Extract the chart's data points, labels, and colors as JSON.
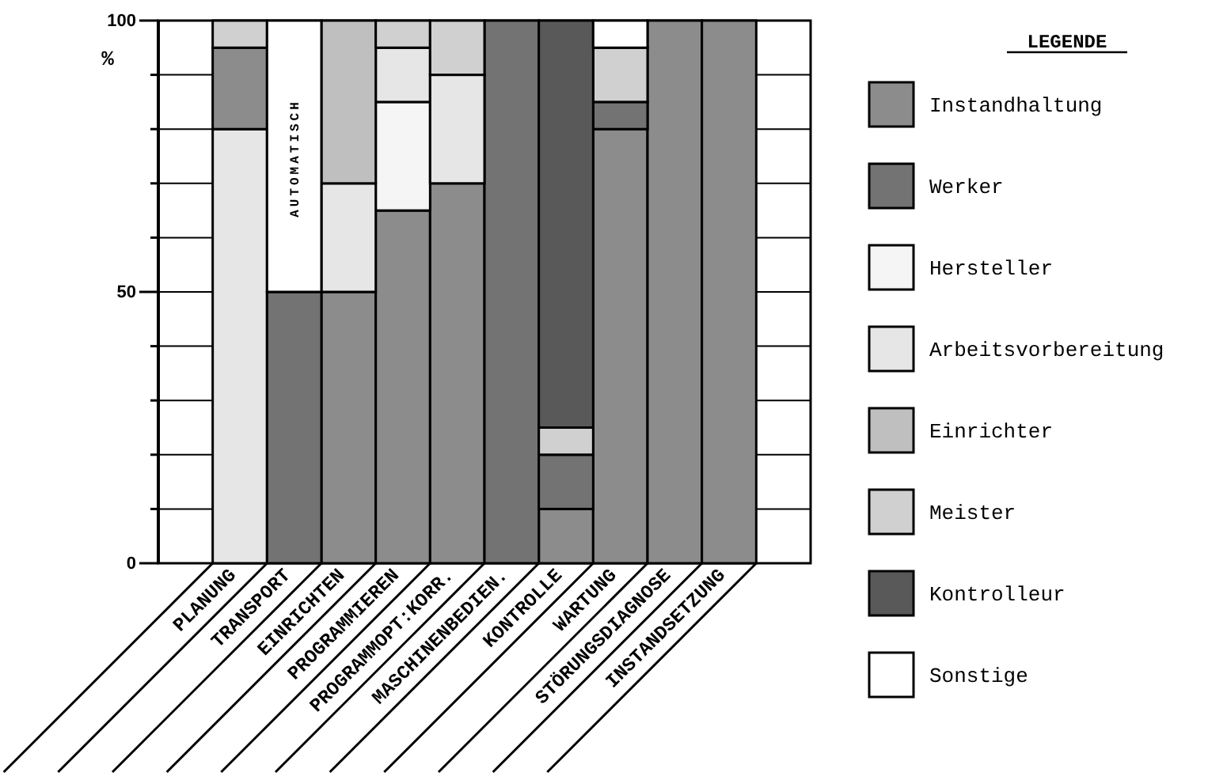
{
  "chart_data": {
    "type": "bar",
    "stacked": true,
    "categories": [
      "PLANUNG",
      "TRANSPORT",
      "EINRICHTEN",
      "PROGRAMMIEREN",
      "PROGRAMMOPT:KORR.",
      "MASCHINENBEDIEN.",
      "KONTROLLE",
      "WARTUNG",
      "STÖRUNGSDIAGNOSE",
      "INSTANDSETZUNG"
    ],
    "series": [
      {
        "color": "#e6e6e6",
        "values": [
          80,
          null,
          null,
          null,
          null,
          null,
          null,
          null,
          null,
          null
        ]
      },
      {
        "name": "Instandhaltung",
        "color": "#8c8c8c",
        "values": [
          15,
          null,
          50,
          65,
          70,
          null,
          10,
          80,
          100,
          100
        ]
      },
      {
        "name": "Werker",
        "color": "#737373",
        "values": [
          null,
          50,
          null,
          null,
          null,
          100,
          10,
          5,
          null,
          null
        ]
      },
      {
        "name": "Hersteller",
        "color": "#f5f5f5",
        "values": [
          null,
          null,
          null,
          20,
          null,
          null,
          null,
          null,
          null,
          null
        ]
      },
      {
        "name": "Arbeitsvorbereitung",
        "color": "#e6e6e6",
        "values": [
          null,
          null,
          20,
          10,
          20,
          null,
          null,
          null,
          null,
          null
        ]
      },
      {
        "name": "Einrichter",
        "color": "#bfbfbf",
        "values": [
          null,
          null,
          30,
          null,
          null,
          null,
          null,
          null,
          null,
          null
        ]
      },
      {
        "name": "Meister",
        "color": "#d0d0d0",
        "values": [
          5,
          null,
          null,
          5,
          10,
          null,
          5,
          10,
          null,
          null
        ]
      },
      {
        "name": "Kontrolleur",
        "color": "#595959",
        "values": [
          null,
          null,
          null,
          null,
          null,
          null,
          75,
          null,
          null,
          null
        ]
      },
      {
        "name": "Sonstige",
        "color": "#ffffff",
        "values": [
          null,
          50,
          null,
          null,
          null,
          null,
          null,
          5,
          null,
          null
        ]
      }
    ],
    "ylabel": "%",
    "ylim": [
      0,
      100
    ],
    "yticks": [
      0,
      {
        "value": 10,
        "label": null
      },
      {
        "value": 20,
        "label": null
      },
      {
        "value": 30,
        "label": null
      },
      {
        "value": 40,
        "label": null
      },
      50,
      {
        "value": 60,
        "label": null
      },
      {
        "value": 70,
        "label": null
      },
      {
        "value": 80,
        "label": null
      },
      {
        "value": 90,
        "label": null
      },
      100
    ],
    "grid": "y",
    "legend": "right",
    "legend_title": "LEGENDE",
    "annotations": [
      "AUTOMATISCH"
    ]
  }
}
